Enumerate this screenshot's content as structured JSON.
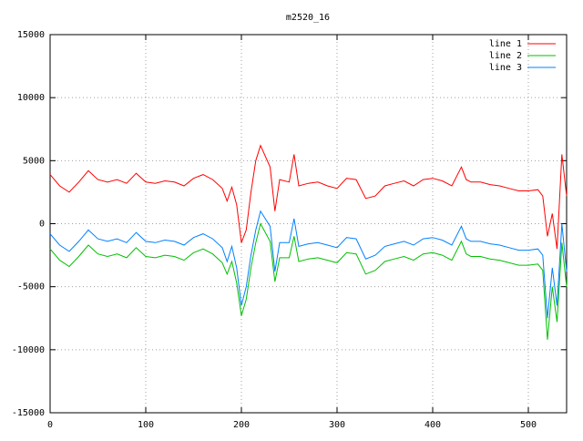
{
  "chart_data": {
    "type": "line",
    "title": "m2520_16",
    "x": [
      0,
      10,
      20,
      30,
      40,
      50,
      60,
      70,
      80,
      90,
      100,
      110,
      120,
      130,
      140,
      150,
      160,
      170,
      180,
      185,
      190,
      195,
      200,
      205,
      210,
      215,
      220,
      230,
      235,
      240,
      250,
      255,
      260,
      270,
      280,
      290,
      300,
      310,
      320,
      330,
      340,
      350,
      360,
      370,
      380,
      390,
      400,
      410,
      420,
      430,
      435,
      440,
      450,
      460,
      470,
      480,
      490,
      500,
      510,
      515,
      520,
      525,
      530,
      535,
      540
    ],
    "series": [
      {
        "name": "line 1",
        "color": "#ff0000",
        "values": [
          3900,
          3000,
          2500,
          3300,
          4200,
          3500,
          3300,
          3500,
          3200,
          4000,
          3300,
          3200,
          3400,
          3300,
          3000,
          3600,
          3900,
          3500,
          2800,
          1800,
          2900,
          1500,
          -1500,
          -500,
          2500,
          5000,
          6200,
          4500,
          1000,
          3500,
          3300,
          5500,
          3000,
          3200,
          3300,
          3000,
          2800,
          3600,
          3500,
          2000,
          2200,
          3000,
          3200,
          3400,
          3000,
          3500,
          3600,
          3400,
          3000,
          4500,
          3500,
          3300,
          3300,
          3100,
          3000,
          2800,
          2600,
          2600,
          2700,
          2200,
          -1000,
          800,
          -2000,
          5500,
          2200
        ]
      },
      {
        "name": "line 2",
        "color": "#00c000",
        "values": [
          -2000,
          -2900,
          -3400,
          -2600,
          -1700,
          -2400,
          -2600,
          -2400,
          -2700,
          -1900,
          -2600,
          -2700,
          -2500,
          -2600,
          -2900,
          -2300,
          -2000,
          -2400,
          -3100,
          -4000,
          -3000,
          -4700,
          -7300,
          -6000,
          -3500,
          -1500,
          0,
          -1400,
          -4600,
          -2700,
          -2700,
          -1000,
          -3000,
          -2800,
          -2700,
          -2900,
          -3100,
          -2300,
          -2400,
          -4000,
          -3700,
          -3000,
          -2800,
          -2600,
          -2900,
          -2400,
          -2300,
          -2500,
          -2900,
          -1400,
          -2400,
          -2600,
          -2600,
          -2800,
          -2900,
          -3100,
          -3300,
          -3300,
          -3200,
          -3700,
          -9200,
          -5000,
          -7800,
          -1500,
          -5000
        ]
      },
      {
        "name": "line 3",
        "color": "#0080ff",
        "values": [
          -800,
          -1700,
          -2200,
          -1400,
          -500,
          -1200,
          -1400,
          -1200,
          -1500,
          -700,
          -1400,
          -1500,
          -1300,
          -1400,
          -1700,
          -1100,
          -800,
          -1200,
          -1900,
          -3000,
          -1800,
          -3500,
          -6500,
          -5000,
          -2500,
          -500,
          1000,
          -200,
          -3800,
          -1500,
          -1500,
          400,
          -1800,
          -1600,
          -1500,
          -1700,
          -1900,
          -1100,
          -1200,
          -2800,
          -2500,
          -1800,
          -1600,
          -1400,
          -1700,
          -1200,
          -1100,
          -1300,
          -1700,
          -200,
          -1200,
          -1400,
          -1400,
          -1600,
          -1700,
          -1900,
          -2100,
          -2100,
          -2000,
          -2500,
          -7500,
          -3500,
          -6500,
          0,
          -3800
        ]
      }
    ],
    "xlim": [
      0,
      540
    ],
    "xticks": [
      0,
      100,
      200,
      300,
      400,
      500
    ],
    "ylim": [
      -15000,
      15000
    ],
    "yticks": [
      -15000,
      -10000,
      -5000,
      0,
      5000,
      10000,
      15000
    ],
    "grid": true,
    "legend": "top-right"
  }
}
